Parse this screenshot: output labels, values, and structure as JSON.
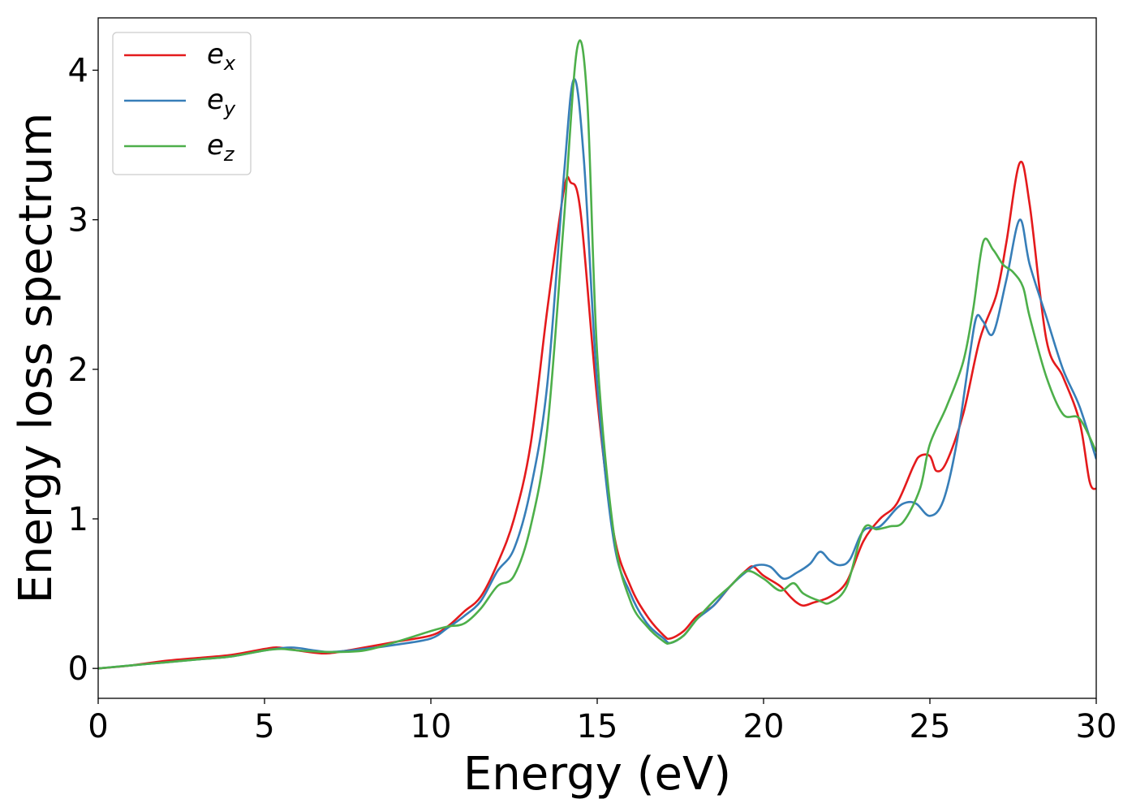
{
  "chart_data": {
    "type": "line",
    "xlabel": "Energy (eV)",
    "ylabel": "Energy loss spectrum",
    "xlim": [
      0,
      30
    ],
    "ylim": [
      -0.2,
      4.35
    ],
    "xticks": [
      0,
      5,
      10,
      15,
      20,
      25,
      30
    ],
    "yticks": [
      0,
      1,
      2,
      3,
      4
    ],
    "grid": false,
    "legend_position": "top-left",
    "series": [
      {
        "name": "e",
        "subscript": "x",
        "color": "#e41a1c",
        "x": [
          0,
          1,
          2,
          3,
          4,
          5,
          5.4,
          6,
          6.8,
          7.5,
          8,
          9,
          10,
          10.5,
          11,
          11.5,
          12,
          12.5,
          13,
          13.5,
          14,
          14.2,
          14.5,
          15,
          15.5,
          16,
          16.5,
          17,
          17.2,
          17.6,
          18,
          18.5,
          19,
          19.5,
          19.7,
          20,
          20.5,
          20.8,
          21,
          21.2,
          21.5,
          22,
          22.5,
          23,
          23.5,
          24,
          24.5,
          24.7,
          25,
          25.2,
          25.5,
          26,
          26.5,
          27,
          27.3,
          27.7,
          28,
          28.5,
          29,
          29.5,
          29.8,
          30
        ],
        "y": [
          0,
          0.02,
          0.05,
          0.07,
          0.09,
          0.13,
          0.14,
          0.12,
          0.1,
          0.12,
          0.14,
          0.18,
          0.22,
          0.28,
          0.38,
          0.48,
          0.7,
          1.0,
          1.5,
          2.4,
          3.2,
          3.25,
          3.05,
          1.8,
          0.9,
          0.55,
          0.35,
          0.22,
          0.2,
          0.25,
          0.35,
          0.42,
          0.55,
          0.66,
          0.68,
          0.62,
          0.55,
          0.48,
          0.44,
          0.42,
          0.44,
          0.48,
          0.58,
          0.85,
          1.0,
          1.1,
          1.35,
          1.42,
          1.42,
          1.32,
          1.38,
          1.7,
          2.2,
          2.5,
          2.85,
          3.38,
          3.1,
          2.2,
          1.95,
          1.65,
          1.25,
          1.2
        ]
      },
      {
        "name": "e",
        "subscript": "y",
        "color": "#377eb8",
        "x": [
          0,
          1,
          2,
          3,
          4,
          5,
          5.8,
          6.5,
          7,
          8,
          9,
          10,
          10.5,
          11,
          11.5,
          12,
          12.5,
          13,
          13.5,
          14,
          14.3,
          14.6,
          15,
          15.5,
          16,
          16.5,
          17,
          17.2,
          17.6,
          18,
          18.5,
          19,
          19.5,
          19.8,
          20.2,
          20.6,
          21,
          21.4,
          21.7,
          22,
          22.3,
          22.6,
          23,
          23.5,
          24,
          24.3,
          24.6,
          25,
          25.4,
          25.8,
          26.2,
          26.4,
          26.6,
          26.9,
          27.3,
          27.7,
          28,
          28.5,
          29,
          29.5,
          30
        ],
        "y": [
          0,
          0.02,
          0.04,
          0.06,
          0.08,
          0.12,
          0.14,
          0.12,
          0.11,
          0.13,
          0.16,
          0.2,
          0.27,
          0.35,
          0.45,
          0.65,
          0.8,
          1.2,
          1.9,
          3.3,
          3.94,
          3.4,
          1.9,
          0.85,
          0.5,
          0.3,
          0.2,
          0.17,
          0.22,
          0.33,
          0.42,
          0.55,
          0.65,
          0.69,
          0.68,
          0.6,
          0.64,
          0.7,
          0.78,
          0.72,
          0.69,
          0.73,
          0.92,
          0.95,
          1.07,
          1.11,
          1.1,
          1.02,
          1.12,
          1.5,
          2.1,
          2.35,
          2.32,
          2.24,
          2.6,
          3.0,
          2.7,
          2.35,
          2.0,
          1.75,
          1.4
        ]
      },
      {
        "name": "e",
        "subscript": "z",
        "color": "#4daf4a",
        "x": [
          0,
          1,
          2,
          3,
          4,
          5,
          5.5,
          6,
          7,
          8,
          9,
          10,
          10.5,
          11,
          11.5,
          12,
          12.5,
          13,
          13.5,
          14,
          14.4,
          14.7,
          15,
          15.5,
          16,
          16.5,
          17,
          17.2,
          17.6,
          18,
          18.5,
          19,
          19.5,
          20,
          20.5,
          20.9,
          21.2,
          21.7,
          22,
          22.5,
          23,
          23.4,
          23.8,
          24.2,
          24.7,
          25,
          25.5,
          26,
          26.3,
          26.6,
          26.9,
          27.2,
          27.5,
          27.8,
          28,
          28.5,
          29,
          29.5,
          30
        ],
        "y": [
          0,
          0.02,
          0.04,
          0.06,
          0.08,
          0.12,
          0.13,
          0.12,
          0.11,
          0.12,
          0.18,
          0.25,
          0.28,
          0.3,
          0.4,
          0.55,
          0.62,
          0.95,
          1.6,
          3.0,
          4.15,
          3.8,
          2.1,
          0.9,
          0.45,
          0.28,
          0.18,
          0.17,
          0.22,
          0.33,
          0.45,
          0.55,
          0.65,
          0.6,
          0.52,
          0.57,
          0.5,
          0.45,
          0.44,
          0.55,
          0.93,
          0.93,
          0.95,
          0.98,
          1.2,
          1.5,
          1.75,
          2.05,
          2.4,
          2.85,
          2.8,
          2.7,
          2.65,
          2.55,
          2.35,
          1.95,
          1.7,
          1.67,
          1.45
        ]
      }
    ]
  }
}
